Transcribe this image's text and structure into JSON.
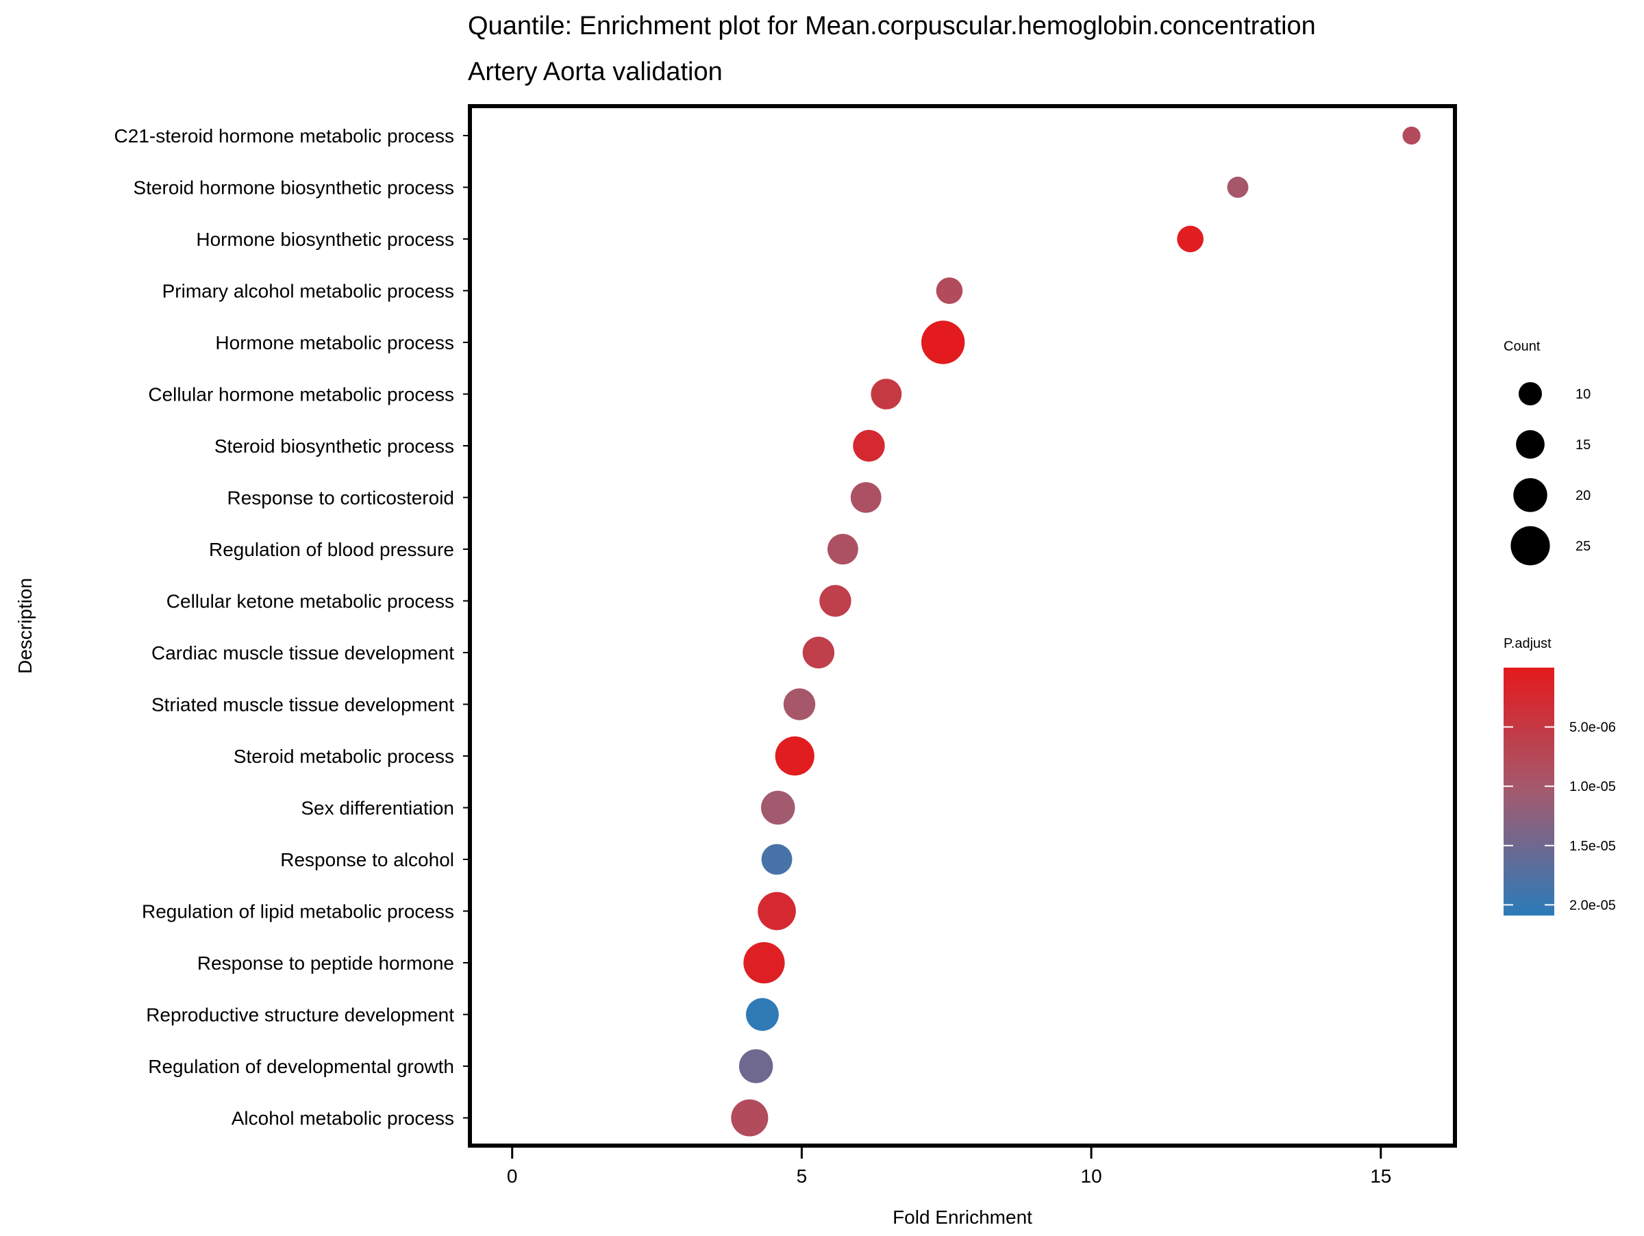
{
  "chart_data": {
    "type": "scatter",
    "title": "Quantile: Enrichment plot for Mean.corpuscular.hemoglobin.concentration",
    "subtitle": "Artery Aorta validation",
    "xlabel": "Fold Enrichment",
    "ylabel": "Description",
    "xlim": [
      -0.73,
      16.28
    ],
    "xticks": [
      0,
      5,
      10,
      15
    ],
    "grid": false,
    "points": [
      {
        "label": "C21-steroid hormone metabolic process",
        "x": 15.53,
        "count": 5,
        "p_adjust": 8e-06
      },
      {
        "label": "Steroid hormone biosynthetic process",
        "x": 12.53,
        "count": 8,
        "p_adjust": 1e-05
      },
      {
        "label": "Hormone biosynthetic process",
        "x": 11.71,
        "count": 13,
        "p_adjust": 5e-07
      },
      {
        "label": "Primary alcohol metabolic process",
        "x": 7.55,
        "count": 13,
        "p_adjust": 8e-06
      },
      {
        "label": "Hormone metabolic process",
        "x": 7.44,
        "count": 29,
        "p_adjust": 2e-07
      },
      {
        "label": "Cellular hormone metabolic process",
        "x": 6.46,
        "count": 17,
        "p_adjust": 5e-06
      },
      {
        "label": "Steroid biosynthetic process",
        "x": 6.16,
        "count": 18,
        "p_adjust": 2.5e-06
      },
      {
        "label": "Response to corticosteroid",
        "x": 6.11,
        "count": 17,
        "p_adjust": 9e-06
      },
      {
        "label": "Regulation of blood pressure",
        "x": 5.71,
        "count": 17,
        "p_adjust": 9e-06
      },
      {
        "label": "Cellular ketone metabolic process",
        "x": 5.58,
        "count": 18,
        "p_adjust": 6e-06
      },
      {
        "label": "Cardiac muscle tissue development",
        "x": 5.29,
        "count": 18,
        "p_adjust": 6e-06
      },
      {
        "label": "Striated muscle tissue development",
        "x": 4.96,
        "count": 18,
        "p_adjust": 1e-05
      },
      {
        "label": "Steroid metabolic process",
        "x": 4.88,
        "count": 25,
        "p_adjust": 5e-07
      },
      {
        "label": "Sex differentiation",
        "x": 4.59,
        "count": 20,
        "p_adjust": 1.05e-05
      },
      {
        "label": "Response to alcohol",
        "x": 4.57,
        "count": 17,
        "p_adjust": 1.85e-05
      },
      {
        "label": "Regulation of lipid metabolic process",
        "x": 4.57,
        "count": 24,
        "p_adjust": 2.5e-06
      },
      {
        "label": "Response to peptide hormone",
        "x": 4.35,
        "count": 27,
        "p_adjust": 1e-06
      },
      {
        "label": "Reproductive structure development",
        "x": 4.32,
        "count": 19,
        "p_adjust": 2.05e-05
      },
      {
        "label": "Regulation of developmental growth",
        "x": 4.21,
        "count": 20,
        "p_adjust": 1.5e-05
      },
      {
        "label": "Alcohol metabolic process",
        "x": 4.1,
        "count": 23,
        "p_adjust": 8e-06
      }
    ],
    "size_legend": {
      "title": "Count",
      "breaks": [
        10,
        15,
        20,
        25
      ],
      "labels": [
        "10",
        "15",
        "20",
        "25"
      ]
    },
    "color_legend": {
      "title": "P.adjust",
      "limits": [
        0,
        2.09e-05
      ],
      "breaks": [
        5e-06,
        1e-05,
        1.5e-05,
        2e-05
      ],
      "labels": [
        "5.0e-06",
        "1.0e-05",
        "1.5e-05",
        "2.0e-05"
      ],
      "low_color": "#e41a1c",
      "high_color": "#2b7bb9"
    },
    "legend_placement": "right"
  }
}
